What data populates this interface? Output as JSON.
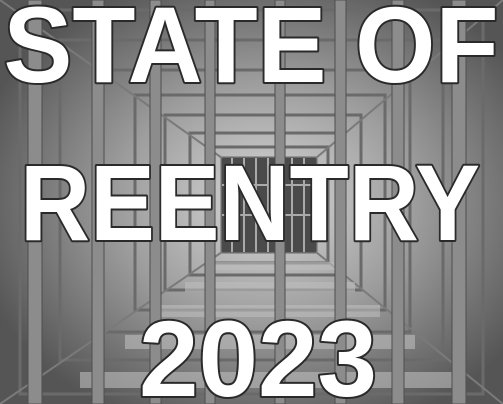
{
  "poster": {
    "lines": [
      "STATE OF",
      "REENTRY",
      "2023"
    ]
  }
}
